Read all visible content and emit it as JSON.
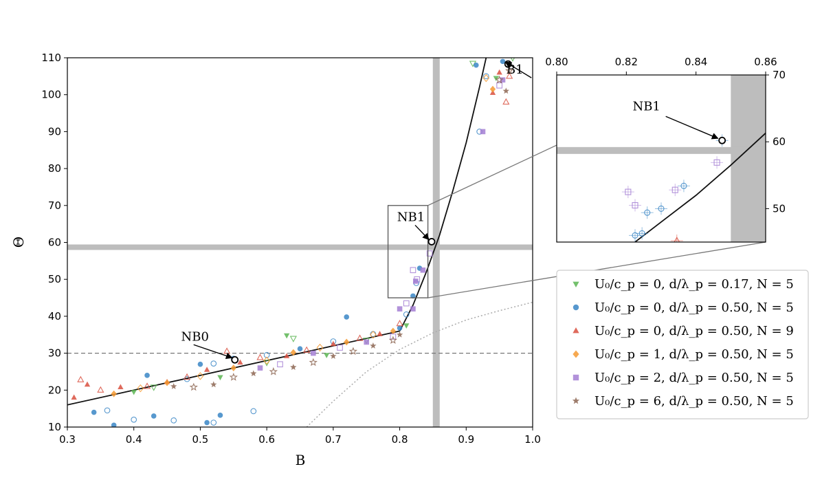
{
  "chart_data": [
    {
      "type": "scatter",
      "xlabel": "B",
      "ylabel": "Θ",
      "xlim": [
        0.3,
        1.0
      ],
      "ylim": [
        10,
        110
      ],
      "xticks": [
        "0.3",
        "0.4",
        "0.5",
        "0.6",
        "0.7",
        "0.8",
        "0.9",
        "1.0"
      ],
      "yticks": [
        "10",
        "20",
        "30",
        "40",
        "50",
        "60",
        "70",
        "80",
        "90",
        "100",
        "110"
      ],
      "grid": false,
      "reference_lines": {
        "vertical_band_B": 0.855,
        "horizontal_band_theta": 58.7,
        "dashed_theta": 30
      },
      "fit_piecewise": {
        "linear": [
          [
            0.3,
            16.0
          ],
          [
            0.8,
            36.0
          ]
        ],
        "steep_curve": [
          [
            0.8,
            36.0
          ],
          [
            0.82,
            43.0
          ],
          [
            0.84,
            52.0
          ],
          [
            0.86,
            62.0
          ],
          [
            0.88,
            74.0
          ],
          [
            0.9,
            87.0
          ],
          [
            0.92,
            102.0
          ],
          [
            0.93,
            110.0
          ]
        ]
      },
      "dotted_curve": [
        [
          0.66,
          10.0
        ],
        [
          0.7,
          17.0
        ],
        [
          0.75,
          25.0
        ],
        [
          0.8,
          31.0
        ],
        [
          0.85,
          35.5
        ],
        [
          0.9,
          39.0
        ],
        [
          0.95,
          41.5
        ],
        [
          1.0,
          43.8
        ]
      ],
      "annotations": [
        {
          "label": "NB0",
          "B": 0.552,
          "theta": 28.2
        },
        {
          "label": "NB1",
          "B": 0.848,
          "theta": 60.2
        },
        {
          "label": "B1",
          "B": 0.963,
          "theta": 108.3
        }
      ],
      "series": [
        {
          "name": "U₀/c_p = 0, d/λ_p = 0.17, N = 5",
          "color": "#5ab552",
          "marker": "triangle-down",
          "points": [
            [
              0.4,
              19.5
            ],
            [
              0.43,
              20.8
            ],
            [
              0.53,
              23.5
            ],
            [
              0.6,
              27.5
            ],
            [
              0.63,
              34.8
            ],
            [
              0.64,
              34.0
            ],
            [
              0.69,
              29.5
            ],
            [
              0.75,
              33.5
            ],
            [
              0.81,
              37.5
            ],
            [
              0.91,
              108.5
            ],
            [
              0.945,
              104.5
            ],
            [
              0.97,
              110.0
            ]
          ]
        },
        {
          "name": "U₀/c_p = 0, d/λ_p = 0.50, N = 5",
          "color": "#3a86c5",
          "marker": "circle",
          "points": [
            [
              0.34,
              14.0
            ],
            [
              0.36,
              14.5
            ],
            [
              0.37,
              10.5
            ],
            [
              0.4,
              12.0
            ],
            [
              0.43,
              13.0
            ],
            [
              0.46,
              11.8
            ],
            [
              0.51,
              11.2
            ],
            [
              0.52,
              11.2
            ],
            [
              0.53,
              13.2
            ],
            [
              0.58,
              14.3
            ],
            [
              0.42,
              24.0
            ],
            [
              0.48,
              23.0
            ],
            [
              0.5,
              27.0
            ],
            [
              0.52,
              27.2
            ],
            [
              0.55,
              28.6
            ],
            [
              0.6,
              29.5
            ],
            [
              0.65,
              31.2
            ],
            [
              0.7,
              33.2
            ],
            [
              0.72,
              39.8
            ],
            [
              0.76,
              35.2
            ],
            [
              0.8,
              36.8
            ],
            [
              0.81,
              40.5
            ],
            [
              0.82,
              45.5
            ],
            [
              0.825,
              49.0
            ],
            [
              0.83,
              53.0
            ],
            [
              0.92,
              90.0
            ],
            [
              0.915,
              108.0
            ],
            [
              0.93,
              105.0
            ],
            [
              0.955,
              109.0
            ]
          ]
        },
        {
          "name": "U₀/c_p = 0, d/λ_p = 0.50, N = 9",
          "color": "#d95040",
          "marker": "triangle-up",
          "points": [
            [
              0.31,
              18.0
            ],
            [
              0.32,
              22.8
            ],
            [
              0.33,
              21.5
            ],
            [
              0.35,
              20.0
            ],
            [
              0.38,
              20.8
            ],
            [
              0.42,
              21.0
            ],
            [
              0.45,
              22.2
            ],
            [
              0.48,
              23.5
            ],
            [
              0.51,
              25.5
            ],
            [
              0.54,
              30.5
            ],
            [
              0.56,
              27.5
            ],
            [
              0.59,
              28.8
            ],
            [
              0.63,
              29.2
            ],
            [
              0.66,
              30.8
            ],
            [
              0.7,
              32.5
            ],
            [
              0.74,
              34.0
            ],
            [
              0.77,
              35.2
            ],
            [
              0.8,
              38.0
            ],
            [
              0.94,
              100.5
            ],
            [
              0.96,
              98.0
            ],
            [
              0.95,
              106.0
            ],
            [
              0.965,
              105.0
            ]
          ]
        },
        {
          "name": "U₀/c_p = 1, d/λ_p = 0.50, N = 5",
          "color": "#f59a32",
          "marker": "diamond",
          "points": [
            [
              0.37,
              19.0
            ],
            [
              0.41,
              20.5
            ],
            [
              0.45,
              22.0
            ],
            [
              0.5,
              23.8
            ],
            [
              0.55,
              26.0
            ],
            [
              0.6,
              28.0
            ],
            [
              0.64,
              30.2
            ],
            [
              0.68,
              31.5
            ],
            [
              0.72,
              33.0
            ],
            [
              0.76,
              35.0
            ],
            [
              0.79,
              36.0
            ],
            [
              0.93,
              104.5
            ],
            [
              0.94,
              101.5
            ]
          ]
        },
        {
          "name": "U₀/c_p = 2, d/λ_p = 0.50, N = 5",
          "color": "#a57fd4",
          "marker": "square",
          "points": [
            [
              0.59,
              26.0
            ],
            [
              0.62,
              27.0
            ],
            [
              0.67,
              30.0
            ],
            [
              0.71,
              31.5
            ],
            [
              0.75,
              33.0
            ],
            [
              0.79,
              34.5
            ],
            [
              0.8,
              42.0
            ],
            [
              0.81,
              43.5
            ],
            [
              0.82,
              42.0
            ],
            [
              0.82,
              52.5
            ],
            [
              0.824,
              49.5
            ],
            [
              0.826,
              50.0
            ],
            [
              0.835,
              52.5
            ],
            [
              0.845,
              57.0
            ],
            [
              0.925,
              90.0
            ],
            [
              0.95,
              102.5
            ],
            [
              0.955,
              104.0
            ]
          ]
        },
        {
          "name": "U₀/c_p = 6, d/λ_p = 0.50, N = 5",
          "color": "#8c6551",
          "marker": "star",
          "points": [
            [
              0.46,
              21.0
            ],
            [
              0.49,
              20.8
            ],
            [
              0.52,
              21.5
            ],
            [
              0.55,
              23.5
            ],
            [
              0.58,
              24.5
            ],
            [
              0.61,
              25.0
            ],
            [
              0.64,
              26.2
            ],
            [
              0.67,
              27.5
            ],
            [
              0.7,
              29.2
            ],
            [
              0.73,
              30.5
            ],
            [
              0.76,
              32.0
            ],
            [
              0.79,
              33.5
            ],
            [
              0.8,
              35.0
            ],
            [
              0.95,
              104.0
            ],
            [
              0.96,
              101.0
            ],
            [
              0.965,
              106.5
            ]
          ]
        }
      ]
    },
    {
      "type": "scatter",
      "name": "inset-zoom",
      "xlim": [
        0.8,
        0.86
      ],
      "ylim": [
        45,
        70
      ],
      "xticks": [
        "0.80",
        "0.82",
        "0.84",
        "0.86"
      ],
      "yticks": [
        "50",
        "60",
        "70"
      ],
      "annotations": [
        {
          "label": "NB1",
          "B": 0.8475,
          "theta": 60.2
        }
      ],
      "vertical_band_B": [
        0.85,
        0.86
      ],
      "horizontal_band_theta": 58.7,
      "fit_curve": [
        [
          0.8225,
          45.0
        ],
        [
          0.83,
          48.0
        ],
        [
          0.84,
          52.0
        ],
        [
          0.85,
          56.5
        ],
        [
          0.86,
          61.3
        ]
      ],
      "points": [
        {
          "series": 1,
          "B": 0.8225,
          "theta": 46.0
        },
        {
          "series": 1,
          "B": 0.8245,
          "theta": 46.3
        },
        {
          "series": 1,
          "B": 0.826,
          "theta": 49.4
        },
        {
          "series": 1,
          "B": 0.83,
          "theta": 50.0
        },
        {
          "series": 1,
          "B": 0.8365,
          "theta": 53.4
        },
        {
          "series": 1,
          "B": 0.8475,
          "theta": 60.2
        },
        {
          "series": 4,
          "B": 0.8205,
          "theta": 52.5
        },
        {
          "series": 4,
          "B": 0.8225,
          "theta": 50.5
        },
        {
          "series": 4,
          "B": 0.834,
          "theta": 52.8
        },
        {
          "series": 4,
          "B": 0.846,
          "theta": 56.9
        },
        {
          "series": 2,
          "B": 0.8345,
          "theta": 45.2
        }
      ]
    }
  ],
  "legend_position": "lower-right"
}
